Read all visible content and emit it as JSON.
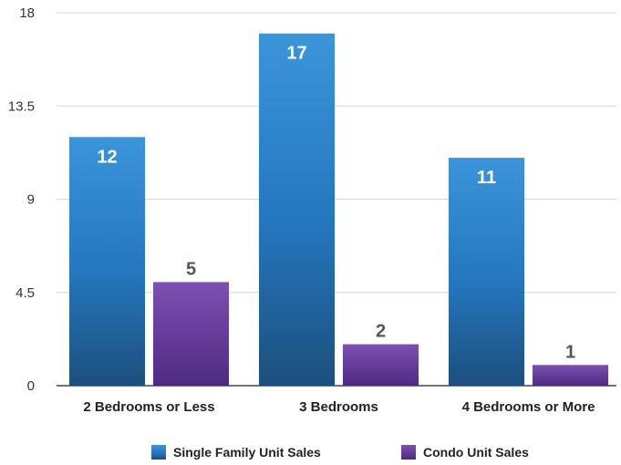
{
  "chart_data": {
    "type": "bar",
    "categories": [
      "2 Bedrooms or Less",
      "3 Bedrooms",
      "4 Bedrooms or More"
    ],
    "series": [
      {
        "name": "Single Family Unit Sales",
        "values": [
          12,
          17,
          11
        ],
        "color": "#2a7fc8"
      },
      {
        "name": "Condo Unit Sales",
        "values": [
          5,
          2,
          1
        ],
        "color": "#6a3d9e"
      }
    ],
    "y_ticks": [
      0,
      4.5,
      9,
      13.5,
      18
    ],
    "ylim": [
      0,
      18
    ],
    "grid": true,
    "legend_position": "bottom"
  }
}
